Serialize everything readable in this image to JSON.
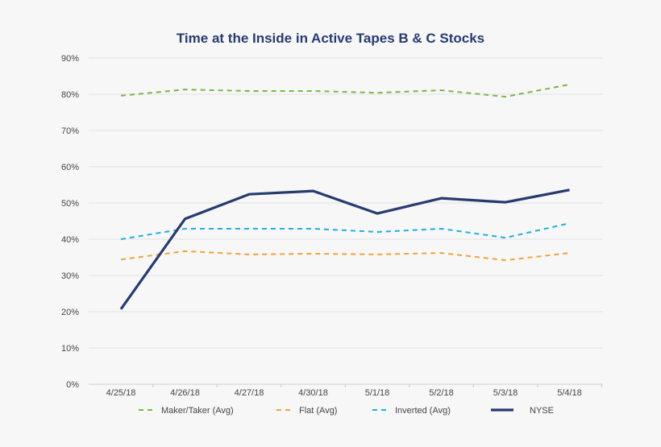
{
  "chart_data": {
    "type": "line",
    "title": "Time at the Inside in Active Tapes B & C Stocks",
    "categories": [
      "4/25/18",
      "4/26/18",
      "4/27/18",
      "4/30/18",
      "5/1/18",
      "5/2/18",
      "5/3/18",
      "5/4/18"
    ],
    "ylim": [
      0,
      90
    ],
    "yticks": [
      0,
      10,
      20,
      30,
      40,
      50,
      60,
      70,
      80,
      90
    ],
    "ytick_format": "%",
    "grid": true,
    "legend_position": "bottom",
    "series": [
      {
        "name": "Maker/Taker (Avg)",
        "color": "#7ab648",
        "dashed": true,
        "values": [
          79.6,
          81.3,
          80.9,
          80.9,
          80.4,
          81.1,
          79.3,
          82.7
        ]
      },
      {
        "name": "Flat (Avg)",
        "color": "#f0a33a",
        "dashed": true,
        "values": [
          34.4,
          36.7,
          35.8,
          36.0,
          35.8,
          36.2,
          34.2,
          36.2
        ]
      },
      {
        "name": "Inverted (Avg)",
        "color": "#1bb1de",
        "dashed": true,
        "values": [
          40.0,
          42.9,
          42.9,
          42.9,
          42.0,
          42.9,
          40.4,
          44.4
        ]
      },
      {
        "name": "NYSE",
        "color": "#263b70",
        "dashed": false,
        "values": [
          20.7,
          45.6,
          52.4,
          53.3,
          47.1,
          51.3,
          50.2,
          53.6
        ]
      }
    ]
  }
}
